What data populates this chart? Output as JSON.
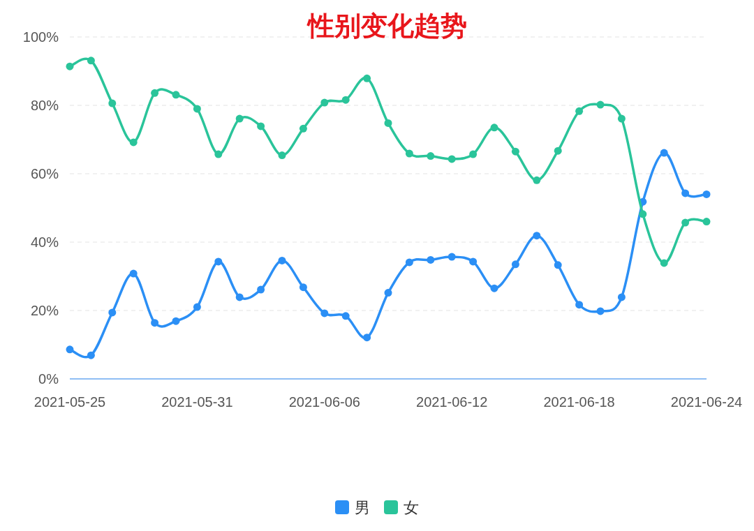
{
  "chart_data": {
    "type": "line",
    "title": "性别变化趋势",
    "x": [
      "2021-05-25",
      "2021-05-26",
      "2021-05-27",
      "2021-05-28",
      "2021-05-29",
      "2021-05-30",
      "2021-05-31",
      "2021-06-01",
      "2021-06-02",
      "2021-06-03",
      "2021-06-04",
      "2021-06-05",
      "2021-06-06",
      "2021-06-07",
      "2021-06-08",
      "2021-06-09",
      "2021-06-10",
      "2021-06-11",
      "2021-06-12",
      "2021-06-13",
      "2021-06-14",
      "2021-06-15",
      "2021-06-16",
      "2021-06-17",
      "2021-06-18",
      "2021-06-19",
      "2021-06-20",
      "2021-06-21",
      "2021-06-22",
      "2021-06-23",
      "2021-06-24"
    ],
    "xlim": [
      "2021-05-25",
      "2021-06-24"
    ],
    "xticks": [
      "2021-05-25",
      "2021-05-31",
      "2021-06-06",
      "2021-06-12",
      "2021-06-18",
      "2021-06-24"
    ],
    "ylim": [
      0,
      100
    ],
    "yticks": [
      {
        "value": 0,
        "label": "0%"
      },
      {
        "value": 20,
        "label": "20%"
      },
      {
        "value": 40,
        "label": "40%"
      },
      {
        "value": 60,
        "label": "60%"
      },
      {
        "value": 80,
        "label": "80%"
      },
      {
        "value": 100,
        "label": "100%"
      }
    ],
    "grid": "y",
    "legend": "bottom",
    "marker": "circle",
    "line_style": "solid",
    "series": [
      {
        "name": "男",
        "color": "#2b8ff5",
        "values": [
          8.6,
          6.9,
          19.4,
          30.8,
          16.4,
          16.9,
          21.0,
          34.3,
          23.9,
          26.1,
          34.6,
          26.8,
          19.2,
          18.4,
          12.1,
          25.2,
          34.1,
          34.8,
          35.7,
          34.3,
          26.5,
          33.5,
          41.9,
          33.3,
          21.7,
          19.8,
          23.9,
          51.8,
          66.1,
          54.3,
          54.0
        ]
      },
      {
        "name": "女",
        "color": "#2ac49a",
        "values": [
          91.4,
          93.1,
          80.6,
          69.2,
          83.6,
          83.1,
          79.0,
          65.7,
          76.1,
          73.9,
          65.4,
          73.2,
          80.8,
          81.6,
          87.9,
          74.8,
          65.9,
          65.2,
          64.3,
          65.7,
          73.5,
          66.5,
          58.1,
          66.7,
          78.3,
          80.2,
          76.1,
          48.2,
          33.9,
          45.7,
          46.0
        ]
      }
    ]
  }
}
